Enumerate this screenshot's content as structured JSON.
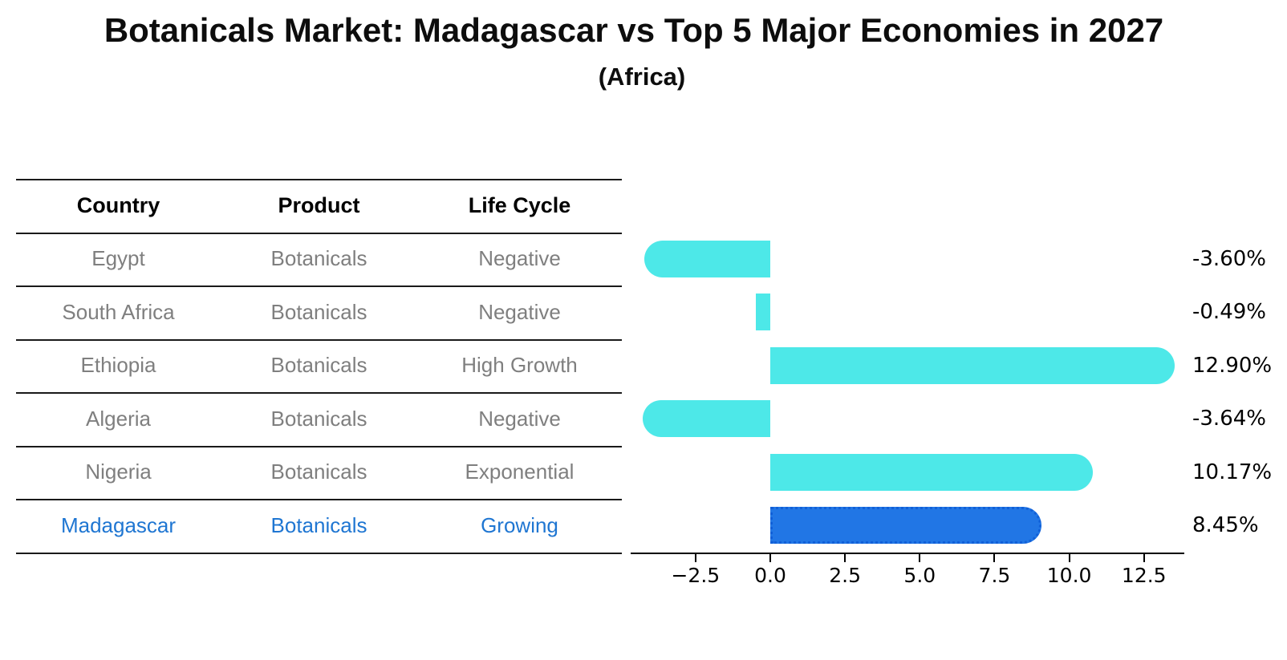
{
  "title": "Botanicals Market: Madagascar vs Top 5 Major Economies in 2027",
  "subtitle": "(Africa)",
  "table": {
    "headers": [
      "Country",
      "Product",
      "Life Cycle"
    ],
    "rows": [
      {
        "country": "Egypt",
        "product": "Botanicals",
        "life_cycle": "Negative",
        "highlight": false
      },
      {
        "country": "South Africa",
        "product": "Botanicals",
        "life_cycle": "Negative",
        "highlight": false
      },
      {
        "country": "Ethiopia",
        "product": "Botanicals",
        "life_cycle": "High Growth",
        "highlight": false
      },
      {
        "country": "Algeria",
        "product": "Botanicals",
        "life_cycle": "Negative",
        "highlight": false
      },
      {
        "country": "Nigeria",
        "product": "Botanicals",
        "life_cycle": "Exponential",
        "highlight": false
      },
      {
        "country": "Madagascar",
        "product": "Botanicals",
        "life_cycle": "Growing",
        "highlight": true
      }
    ]
  },
  "chart_data": {
    "type": "bar",
    "orientation": "horizontal",
    "title": "Botanicals Market: Madagascar vs Top 5 Major Economies in 2027",
    "subtitle": "(Africa)",
    "categories": [
      "Egypt",
      "South Africa",
      "Ethiopia",
      "Algeria",
      "Nigeria",
      "Madagascar"
    ],
    "values": [
      -3.6,
      -0.49,
      12.9,
      -3.64,
      10.17,
      8.45
    ],
    "value_labels": [
      "-3.60%",
      "-0.49%",
      "12.90%",
      "-3.64%",
      "10.17%",
      "8.45%"
    ],
    "highlight_index": 5,
    "xlabel": "",
    "ylabel": "",
    "xlim": [
      -4.67,
      13.85
    ],
    "x_tick_values": [
      -2.5,
      0,
      2.5,
      5,
      7.5,
      10,
      12.5
    ],
    "x_tick_labels": [
      "−2.5",
      "0.0",
      "2.5",
      "5.0",
      "7.5",
      "10.0",
      "12.5"
    ],
    "grid": false,
    "legend": "none",
    "bar_color": "#4DE8E8",
    "highlight_bar_color": "#2176E5"
  },
  "colors": {
    "bar_cyan": "#4DE8E8",
    "bar_blue": "#2176E5",
    "highlight_text": "#1F76D2",
    "table_text_gray": "#7f7f7f",
    "header_text": "#000000",
    "line_black": "#1a1a1a"
  }
}
